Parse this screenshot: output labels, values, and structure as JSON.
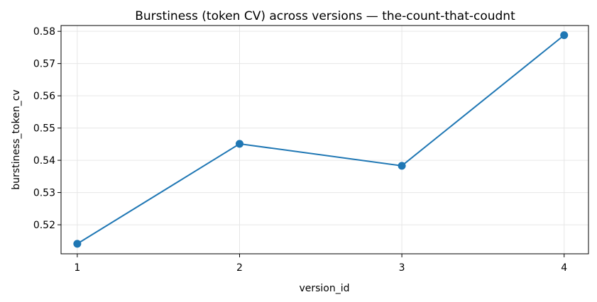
{
  "chart_data": {
    "type": "line",
    "title": "Burstiness (token CV) across versions — the-count-that-coudnt",
    "xlabel": "version_id",
    "ylabel": "burstiness_token_cv",
    "x": [
      1,
      2,
      3,
      4
    ],
    "xticks": [
      "1",
      "2",
      "3",
      "4"
    ],
    "series": [
      {
        "values": [
          0.5141,
          0.5451,
          0.5383,
          0.5788
        ]
      }
    ],
    "yticks": [
      "0.52",
      "0.53",
      "0.54",
      "0.55",
      "0.56",
      "0.57",
      "0.58"
    ],
    "xlim": [
      0.9,
      4.15
    ],
    "ylim": [
      0.511,
      0.5818
    ],
    "grid": true,
    "color": "#1f77b4"
  }
}
